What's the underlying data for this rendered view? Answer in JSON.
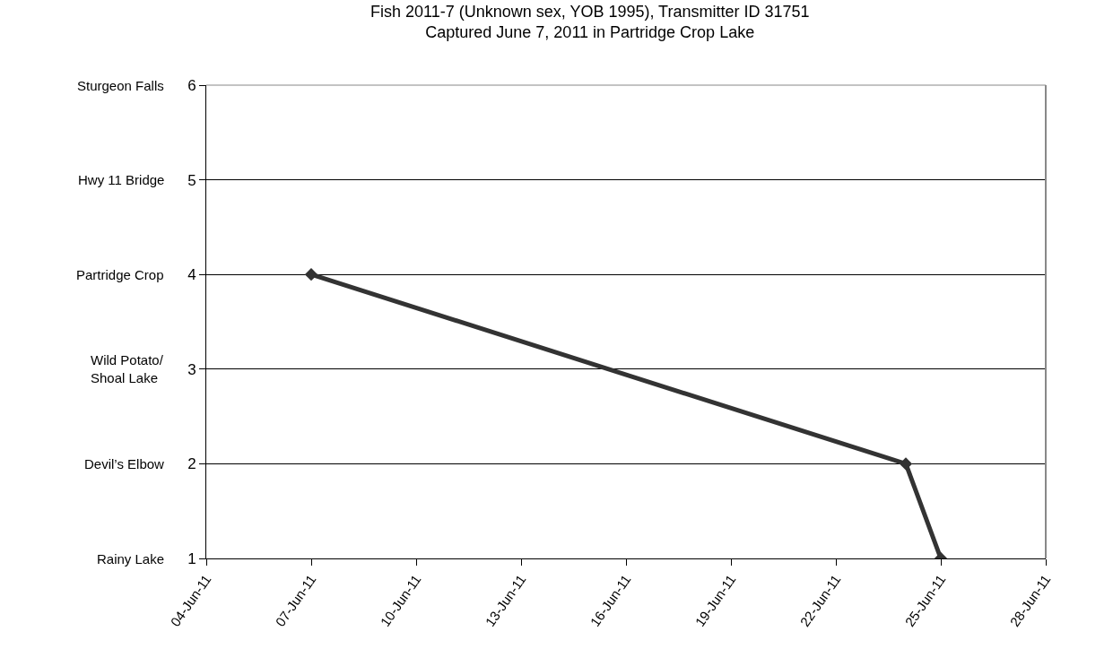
{
  "chart_data": {
    "type": "line",
    "title": "Fish 2011-7 (Unknown sex, YOB 1995), Transmitter ID 31751\nCaptured June 7, 2011 in Partridge Crop Lake",
    "x": [
      "2011-06-07",
      "2011-06-24",
      "2011-06-25"
    ],
    "series": [
      {
        "color": "#333333",
        "values": [
          4,
          2,
          1
        ]
      }
    ],
    "xlim": [
      "2011-06-04",
      "2011-06-28"
    ],
    "xticks": [
      {
        "value": "2011-06-04",
        "label": "04-Jun-11"
      },
      {
        "value": "2011-06-07",
        "label": "07-Jun-11"
      },
      {
        "value": "2011-06-10",
        "label": "10-Jun-11"
      },
      {
        "value": "2011-06-13",
        "label": "13-Jun-11"
      },
      {
        "value": "2011-06-16",
        "label": "16-Jun-11"
      },
      {
        "value": "2011-06-19",
        "label": "19-Jun-11"
      },
      {
        "value": "2011-06-22",
        "label": "22-Jun-11"
      },
      {
        "value": "2011-06-25",
        "label": "25-Jun-11"
      },
      {
        "value": "2011-06-28",
        "label": "28-Jun-11"
      }
    ],
    "ylim": [
      1,
      6
    ],
    "yticks": [
      1,
      2,
      3,
      4,
      5,
      6
    ],
    "annotations": [
      "Rainy Lake",
      "Devil’s Elbow",
      "Wild Potato/\nShoal Lake",
      "Partridge Crop",
      "Hwy 11 Bridge",
      "Sturgeon Falls"
    ],
    "grid": "y",
    "legend": false,
    "marker": "diamond",
    "line_style": "solid"
  }
}
